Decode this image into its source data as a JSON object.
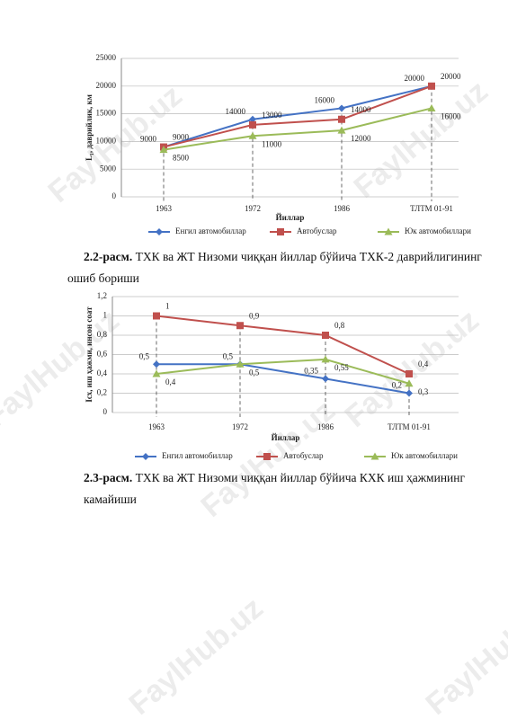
{
  "watermark": "FaylHub.uz",
  "chart_data": [
    {
      "type": "line",
      "y_label": "L₁, даврийлик, км",
      "x_label": "Йиллар",
      "categories": [
        "1963",
        "1972",
        "1986",
        "ТЛТМ 01-91"
      ],
      "ylim": [
        0,
        25000
      ],
      "yticks": [
        0,
        5000,
        10000,
        15000,
        20000,
        25000
      ],
      "grid": true,
      "legend": "bottom",
      "series": [
        {
          "name": "Енгил автомобиллар",
          "color": "#4472c4",
          "marker": "diamond",
          "values": [
            9000,
            14000,
            16000,
            20000
          ]
        },
        {
          "name": "Автобуслар",
          "color": "#c0504d",
          "marker": "square",
          "values": [
            9000,
            13000,
            14000,
            20000
          ]
        },
        {
          "name": "Юк автомобиллари",
          "color": "#9bbb59",
          "marker": "triangle",
          "values": [
            8500,
            11000,
            12000,
            16000
          ]
        }
      ],
      "caption_label": "2.2-расм.",
      "caption_text": "ТХК ва ЖТ Низоми чиққан йиллар бўйича ТХК-2 даврийлигининг ошиб бориши"
    },
    {
      "type": "line",
      "y_label": "Iсх, иш ҳажми, инсон соат",
      "x_label": "Йиллар",
      "categories": [
        "1963",
        "1972",
        "1986",
        "ТЛТМ 01-91"
      ],
      "ylim": [
        0,
        1.2
      ],
      "yticks": [
        0,
        {
          "value": 0.2,
          "label": "0,2"
        },
        {
          "value": 0.4,
          "label": "0,4"
        },
        {
          "value": 0.6,
          "label": "0,6"
        },
        {
          "value": 0.8,
          "label": "0,8"
        },
        1,
        {
          "value": 1.2,
          "label": "1,2"
        }
      ],
      "grid": true,
      "legend": "bottom",
      "series": [
        {
          "name": "Енгил автомобиллар",
          "color": "#4472c4",
          "marker": "diamond",
          "values": [
            0.5,
            0.5,
            0.35,
            0.2
          ],
          "value_labels": [
            "0,5",
            "0,5",
            "0,35",
            "0,2"
          ]
        },
        {
          "name": "Автобуслар",
          "color": "#c0504d",
          "marker": "square",
          "values": [
            1,
            0.9,
            0.8,
            0.4
          ],
          "value_labels": [
            "1",
            "0,9",
            "0,8",
            "0,4"
          ]
        },
        {
          "name": "Юк автомобиллари",
          "color": "#9bbb59",
          "marker": "triangle",
          "values": [
            0.4,
            0.5,
            0.55,
            0.3
          ],
          "value_labels": [
            "0,4",
            "0,5",
            "0,55",
            "0,3"
          ]
        }
      ],
      "caption_label": "2.3-расм.",
      "caption_text": "ТХК ва ЖТ Низоми чиққан йиллар бўйича КХК иш ҳажмининг камайиши"
    }
  ]
}
